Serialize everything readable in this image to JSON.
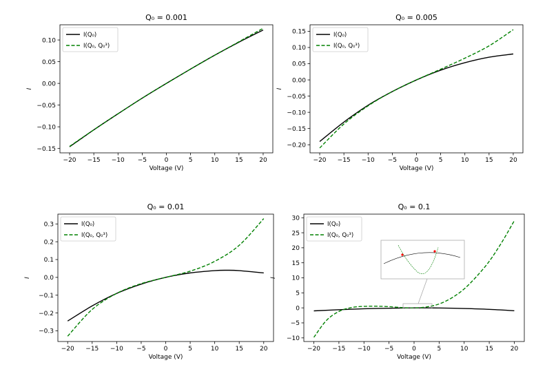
{
  "figure": {
    "xlabel": "Voltage (V)",
    "ylabel": "I",
    "legend": [
      "I(Q₀)",
      "I(Q₀, Q₀³)"
    ]
  },
  "chart_data": [
    {
      "type": "line",
      "title": "Q₀ = 0.001",
      "xlabel": "Voltage (V)",
      "ylabel": "I",
      "xlim": [
        -22,
        22
      ],
      "ylim": [
        -0.16,
        0.135
      ],
      "xticks": [
        -20,
        -15,
        -10,
        -5,
        0,
        5,
        10,
        15,
        20
      ],
      "yticks": [
        -0.15,
        -0.1,
        -0.05,
        0.0,
        0.05,
        0.1
      ],
      "ytick_labels": [
        "−0.15",
        "−0.10",
        "−0.05",
        "0.00",
        "0.05",
        "0.10"
      ],
      "legend_position": "upper-left",
      "series": [
        {
          "name": "I(Q₀)",
          "style": "solid",
          "color": "#000000",
          "x": [
            -20,
            -15,
            -10,
            -5,
            0,
            5,
            10,
            15,
            20
          ],
          "y": [
            -0.146,
            -0.107,
            -0.07,
            -0.034,
            0.0,
            0.033,
            0.065,
            0.095,
            0.123
          ]
        },
        {
          "name": "I(Q₀, Q₀³)",
          "style": "dashed",
          "color": "#008000",
          "x": [
            -20,
            -15,
            -10,
            -5,
            0,
            5,
            10,
            15,
            20
          ],
          "y": [
            -0.145,
            -0.107,
            -0.07,
            -0.034,
            0.0,
            0.033,
            0.065,
            0.096,
            0.127
          ]
        }
      ]
    },
    {
      "type": "line",
      "title": "Q₀ = 0.005",
      "xlabel": "Voltage (V)",
      "ylabel": "I",
      "xlim": [
        -22,
        22
      ],
      "ylim": [
        -0.225,
        0.17
      ],
      "xticks": [
        -20,
        -15,
        -10,
        -5,
        0,
        5,
        10,
        15,
        20
      ],
      "yticks": [
        -0.2,
        -0.15,
        -0.1,
        -0.05,
        0.0,
        0.05,
        0.1,
        0.15
      ],
      "ytick_labels": [
        "−0.20",
        "−0.15",
        "−0.10",
        "−0.05",
        "0.00",
        "0.05",
        "0.10",
        "0.15"
      ],
      "legend_position": "upper-left",
      "series": [
        {
          "name": "I(Q₀)",
          "style": "solid",
          "color": "#000000",
          "x": [
            -20,
            -15,
            -10,
            -5,
            0,
            5,
            10,
            15,
            20
          ],
          "y": [
            -0.19,
            -0.13,
            -0.078,
            -0.036,
            0.0,
            0.03,
            0.053,
            0.07,
            0.08
          ]
        },
        {
          "name": "I(Q₀, Q₀³)",
          "style": "dashed",
          "color": "#008000",
          "x": [
            -20,
            -15,
            -10,
            -5,
            0,
            5,
            10,
            15,
            20
          ],
          "y": [
            -0.21,
            -0.136,
            -0.08,
            -0.036,
            0.0,
            0.033,
            0.067,
            0.105,
            0.155
          ]
        }
      ]
    },
    {
      "type": "line",
      "title": "Q₀ = 0.01",
      "xlabel": "Voltage (V)",
      "ylabel": "I",
      "xlim": [
        -22,
        22
      ],
      "ylim": [
        -0.36,
        0.355
      ],
      "xticks": [
        -20,
        -15,
        -10,
        -5,
        0,
        5,
        10,
        15,
        20
      ],
      "yticks": [
        -0.3,
        -0.2,
        -0.1,
        0.0,
        0.1,
        0.2,
        0.3
      ],
      "ytick_labels": [
        "−0.3",
        "−0.2",
        "−0.1",
        "0.0",
        "0.1",
        "0.2",
        "0.3"
      ],
      "legend_position": "upper-left",
      "series": [
        {
          "name": "I(Q₀)",
          "style": "solid",
          "color": "#000000",
          "x": [
            -20,
            -15,
            -10,
            -5,
            0,
            5,
            10,
            12.5,
            15,
            20
          ],
          "y": [
            -0.245,
            -0.16,
            -0.09,
            -0.038,
            0.0,
            0.025,
            0.038,
            0.04,
            0.038,
            0.025
          ]
        },
        {
          "name": "I(Q₀, Q₀³)",
          "style": "dashed",
          "color": "#008000",
          "x": [
            -20,
            -15,
            -10,
            -5,
            0,
            5,
            10,
            15,
            20
          ],
          "y": [
            -0.33,
            -0.18,
            -0.09,
            -0.035,
            0.0,
            0.035,
            0.09,
            0.18,
            0.33
          ]
        }
      ]
    },
    {
      "type": "line",
      "title": "Q₀ = 0.1",
      "xlabel": "Voltage (V)",
      "ylabel": "I",
      "xlim": [
        -22,
        22
      ],
      "ylim": [
        -11.2,
        31.2
      ],
      "xticks": [
        -20,
        -15,
        -10,
        -5,
        0,
        5,
        10,
        15,
        20
      ],
      "yticks": [
        -10,
        -5,
        0,
        5,
        10,
        15,
        20,
        25,
        30
      ],
      "ytick_labels": [
        "−10",
        "−5",
        "0",
        "5",
        "10",
        "15",
        "20",
        "25",
        "30"
      ],
      "legend_position": "upper-left",
      "inset": {
        "type": "zoom",
        "shows": "intersection of both curves near the origin",
        "markers_color": "#ff0000"
      },
      "series": [
        {
          "name": "I(Q₀)",
          "style": "solid",
          "color": "#000000",
          "x": [
            -20,
            -15,
            -10,
            -5,
            0,
            5,
            10,
            15,
            20
          ],
          "y": [
            -1.0,
            -0.62,
            -0.3,
            -0.12,
            0.0,
            -0.05,
            -0.22,
            -0.5,
            -0.95
          ]
        },
        {
          "name": "I(Q₀, Q₀³)",
          "style": "dashed",
          "color": "#008000",
          "x": [
            -20,
            -17.5,
            -15,
            -12.5,
            -10,
            -7.5,
            -5,
            -2.5,
            0,
            2.5,
            5,
            7.5,
            10,
            12.5,
            15,
            17.5,
            20
          ],
          "y": [
            -9.8,
            -4.2,
            -1.2,
            0.1,
            0.5,
            0.55,
            0.4,
            0.1,
            0.0,
            0.3,
            1.3,
            3.3,
            6.3,
            10.5,
            15.5,
            21.8,
            29.0
          ]
        }
      ]
    }
  ]
}
